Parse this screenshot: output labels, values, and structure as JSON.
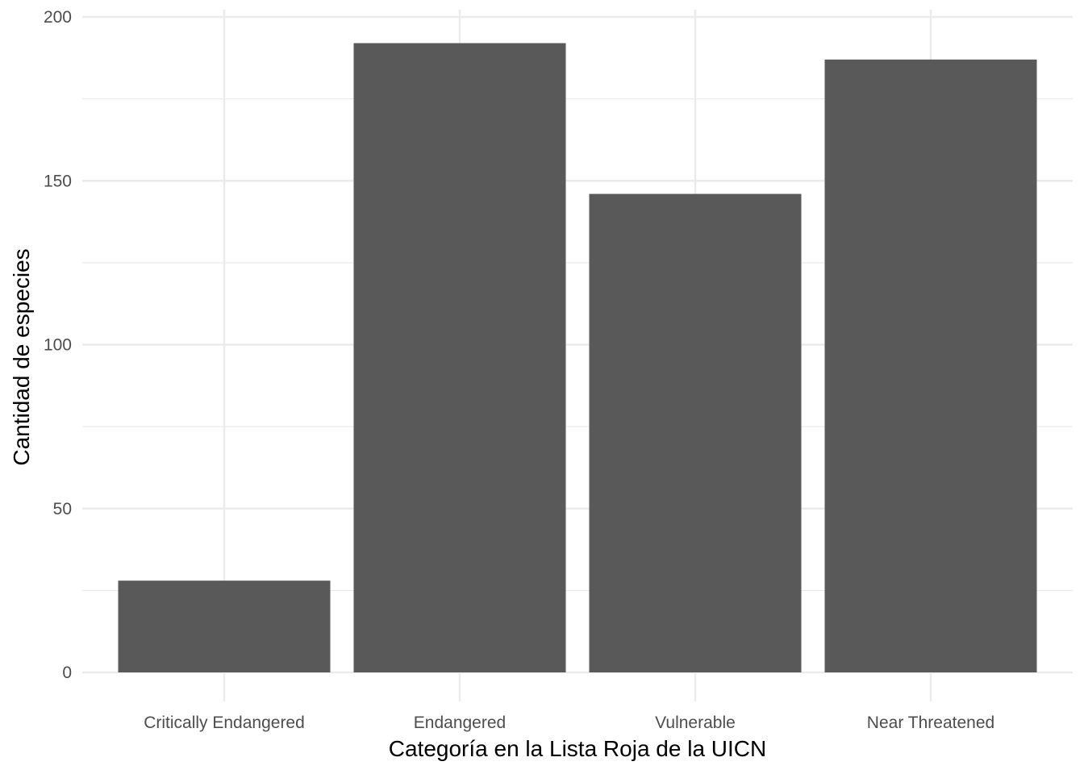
{
  "chart_data": {
    "type": "bar",
    "categories": [
      "Critically Endangered",
      "Endangered",
      "Vulnerable",
      "Near Threatened"
    ],
    "values": [
      28,
      192,
      146,
      187
    ],
    "xlabel": "Categoría en la Lista Roja de la UICN",
    "ylabel": "Cantidad de especies",
    "ylim": [
      0,
      200
    ],
    "yticks": [
      0,
      50,
      100,
      150,
      200
    ],
    "grid": true,
    "bar_color": "#595959",
    "grid_color": "#ebebeb"
  }
}
